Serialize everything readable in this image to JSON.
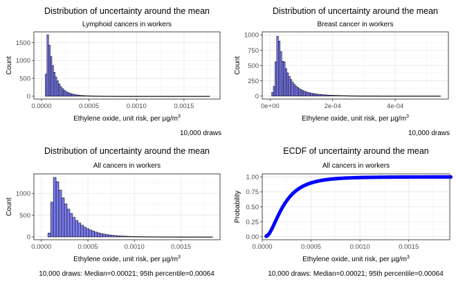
{
  "chart_data": [
    {
      "type": "bar",
      "title": "Distribution of uncertainty around the mean",
      "subtitle": "Lymphoid cancers in workers",
      "xlabel": "Ethylene oxide, unit risk, per µg/m",
      "xlabel_sup": "3",
      "ylabel": "Count",
      "caption": "10,000 draws",
      "xlim": [
        -8e-05,
        0.00188
      ],
      "ylim": [
        -80,
        1800
      ],
      "x_ticks": [
        0,
        0.0005,
        0.001,
        0.0015
      ],
      "x_tick_labels": [
        "0.0000",
        "0.0005",
        "0.0010",
        "0.0015"
      ],
      "y_ticks": [
        0,
        500,
        1000,
        1500
      ],
      "y_tick_labels": [
        "0",
        "500",
        "1000",
        "1500"
      ],
      "grid": true,
      "fill_color": "#7b7bee",
      "bins": {
        "start": 4e-05,
        "width": 1.73e-05,
        "counts": [
          620,
          1720,
          1430,
          1110,
          860,
          670,
          540,
          430,
          345,
          270,
          215,
          172,
          140,
          112,
          92,
          76,
          62,
          51,
          43,
          36,
          30,
          25,
          21,
          18,
          16,
          14,
          12,
          10,
          9,
          8,
          7,
          6,
          5,
          5,
          4,
          4,
          3,
          3,
          3,
          2,
          2,
          2,
          2,
          2,
          1,
          1,
          1,
          1,
          1,
          1,
          1,
          1,
          1,
          1,
          1,
          1,
          1,
          1,
          1,
          1,
          1,
          1,
          1,
          1,
          1,
          1,
          1,
          1,
          1,
          1,
          1,
          1,
          1,
          1,
          1,
          1,
          1,
          1,
          1,
          1,
          1,
          1,
          1,
          1,
          1,
          1,
          1,
          1,
          1,
          1,
          1,
          1,
          1,
          1,
          1,
          1,
          1,
          1,
          1,
          1
        ]
      }
    },
    {
      "type": "bar",
      "title": "Distribution of uncertainty around the mean",
      "subtitle": "Breast cancer in workers",
      "xlabel": "Ethylene oxide, unit risk, per µg/m",
      "xlabel_sup": "3",
      "ylabel": "Count",
      "caption": "10,000 draws",
      "xlim": [
        -2.5e-05,
        0.00057
      ],
      "ylim": [
        -50,
        1050
      ],
      "x_ticks": [
        0,
        0.0002,
        0.0004
      ],
      "x_tick_labels": [
        "0e+00",
        "2e-04",
        "4e-04"
      ],
      "y_ticks": [
        0,
        250,
        500,
        750,
        1000
      ],
      "y_tick_labels": [
        "0",
        "250",
        "500",
        "750",
        "1000"
      ],
      "grid": true,
      "fill_color": "#7b7bee",
      "bins": {
        "start": 5e-06,
        "width": 5.4e-06,
        "counts": [
          60,
          160,
          560,
          980,
          900,
          730,
          570,
          560,
          450,
          380,
          320,
          270,
          225,
          190,
          162,
          140,
          120,
          104,
          90,
          78,
          68,
          60,
          53,
          47,
          42,
          37,
          33,
          30,
          27,
          24,
          22,
          20,
          18,
          16,
          14,
          13,
          12,
          11,
          10,
          9,
          8,
          7,
          7,
          6,
          5,
          5,
          4,
          4,
          4,
          3,
          3,
          3,
          3,
          2,
          2,
          2,
          2,
          2,
          2,
          2,
          2,
          2,
          2,
          2,
          1,
          1,
          1,
          1,
          1,
          1,
          1,
          1,
          1,
          1,
          1,
          1,
          1,
          1,
          1,
          1,
          1,
          1,
          1,
          1,
          1,
          1,
          1,
          1,
          1,
          1,
          1,
          1,
          1,
          1,
          1,
          1,
          1,
          1,
          1,
          1
        ]
      }
    },
    {
      "type": "bar",
      "title": "Distribution of uncertainty around the mean",
      "subtitle": "All cancers in workers",
      "xlabel": "Ethylene oxide, unit risk, per µg/m",
      "xlabel_sup": "3",
      "ylabel": "Count",
      "caption": "10,000 draws: Median=0.00021; 95th percentile=0.00064",
      "xlim": [
        -8e-05,
        0.00192
      ],
      "ylim": [
        -65,
        1450
      ],
      "x_ticks": [
        0,
        0.0005,
        0.001,
        0.0015
      ],
      "x_tick_labels": [
        "0.0000",
        "0.0005",
        "0.0010",
        "0.0015"
      ],
      "y_ticks": [
        0,
        500,
        1000
      ],
      "y_tick_labels": [
        "0",
        "500",
        "1000"
      ],
      "grid": true,
      "fill_color": "#7b7bee",
      "bins": {
        "start": 7e-05,
        "width": 2.95e-05,
        "counts": [
          90,
          800,
          1370,
          1270,
          1080,
          900,
          760,
          640,
          540,
          450,
          380,
          320,
          270,
          225,
          190,
          160,
          135,
          112,
          94,
          78,
          65,
          55,
          46,
          38,
          32,
          27,
          23,
          19,
          16,
          14,
          12,
          10,
          8,
          7,
          6,
          5,
          5,
          4,
          4,
          3,
          3,
          3,
          2,
          2,
          2,
          2,
          2,
          1,
          1,
          1,
          1,
          1,
          1,
          1,
          1,
          1,
          1,
          1,
          1,
          1
        ]
      }
    },
    {
      "type": "scatter",
      "title": "ECDF of uncertainty around the mean",
      "subtitle": "All cancers in workers",
      "xlabel": "Ethylene oxide, unit risk, per µg/m",
      "xlabel_sup": "3",
      "ylabel": "Probability",
      "caption": "10,000 draws: Median=0.00021; 95th percentile=0.00064",
      "xlim": [
        0,
        0.00192
      ],
      "ylim": [
        -0.05,
        1.05
      ],
      "x_ticks": [
        0,
        0.0005,
        0.001,
        0.0015
      ],
      "x_tick_labels": [
        "0.0000",
        "0.0005",
        "0.0010",
        "0.0015"
      ],
      "y_ticks": [
        0,
        0.25,
        0.5,
        0.75,
        1
      ],
      "y_tick_labels": [
        "0.00",
        "0.25",
        "0.50",
        "0.75",
        "1.00"
      ],
      "grid": true,
      "point_color": "#0000ff",
      "curve": {
        "model": "lognormal",
        "median": 0.00021,
        "p95": 0.00064,
        "x_min": 4e-05,
        "x_max": 0.00193
      }
    }
  ]
}
